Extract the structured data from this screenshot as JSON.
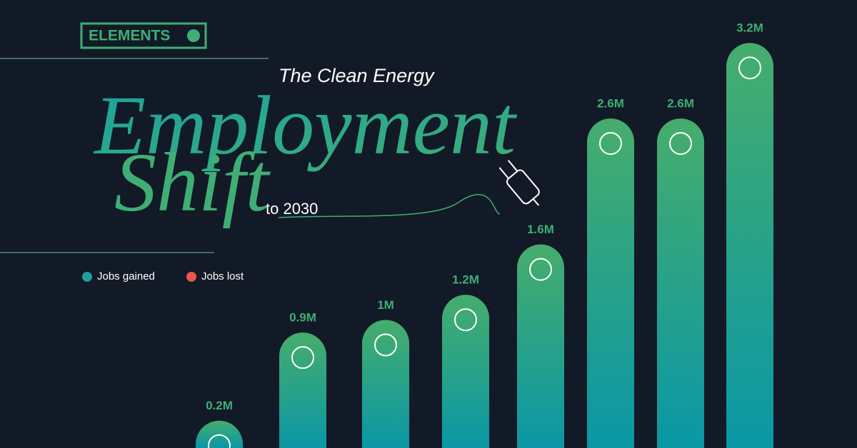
{
  "brand": "ELEMENTS",
  "chart_data": {
    "type": "bar",
    "title_lines": [
      "The Clean Energy",
      "Employment",
      "Shift",
      "to 2030"
    ],
    "series": [
      {
        "name": "Jobs gained",
        "color": "#3fae75",
        "values": [
          0.2,
          0.9,
          1,
          1.2,
          1.6,
          2.6,
          2.6,
          3.2
        ],
        "value_labels": [
          "0.2M",
          "0.9M",
          "1M",
          "1.2M",
          "1.6M",
          "2.6M",
          "2.6M",
          "3.2M"
        ]
      }
    ],
    "legend": [
      {
        "name": "Jobs gained",
        "color": "#1f9e9a"
      },
      {
        "name": "Jobs lost",
        "color": "#e8574e"
      }
    ]
  }
}
